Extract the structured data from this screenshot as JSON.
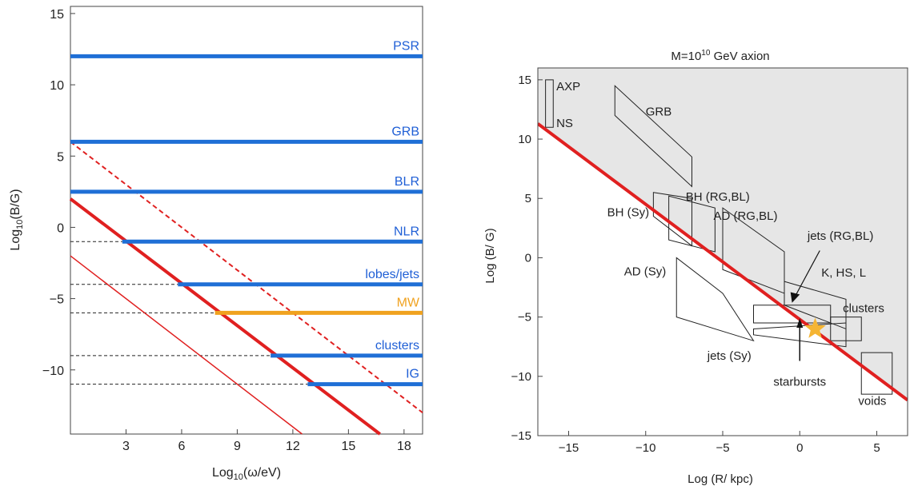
{
  "chart_data": [
    {
      "type": "line",
      "xlabel": "Log10(ω/eV)",
      "ylabel": "Log10(B/G)",
      "xlim": [
        0,
        19
      ],
      "ylim": [
        -14.5,
        15.5
      ],
      "xticks": [
        3,
        6,
        9,
        12,
        15,
        18
      ],
      "yticks": [
        15,
        10,
        5,
        0,
        -5,
        -10
      ],
      "grid": false,
      "environments": [
        {
          "name": "PSR",
          "logB": 12,
          "x_start": 0,
          "color": "#1f6fd6"
        },
        {
          "name": "GRB",
          "logB": 6,
          "x_start": 0,
          "color": "#1f6fd6"
        },
        {
          "name": "BLR",
          "logB": 2.5,
          "x_start": 0,
          "color": "#1f6fd6"
        },
        {
          "name": "NLR",
          "logB": -1,
          "x_start": 2.8,
          "color": "#1f6fd6"
        },
        {
          "name": "lobes/jets",
          "logB": -4,
          "x_start": 5.8,
          "color": "#1f6fd6"
        },
        {
          "name": "MW",
          "logB": -6,
          "x_start": 7.8,
          "color": "#f0a21f"
        },
        {
          "name": "clusters",
          "logB": -9,
          "x_start": 10.8,
          "color": "#1f6fd6"
        },
        {
          "name": "IG",
          "logB": -11,
          "x_start": 12.8,
          "color": "#1f6fd6"
        }
      ],
      "diagonal_lines": [
        {
          "style": "thick-solid",
          "points": [
            [
              0,
              2
            ],
            [
              16.7,
              -14.5
            ]
          ]
        },
        {
          "style": "thin-solid",
          "points": [
            [
              0,
              -2
            ],
            [
              12.5,
              -14.5
            ]
          ]
        },
        {
          "style": "dashed",
          "points": [
            [
              0,
              6
            ],
            [
              19,
              -13
            ]
          ]
        }
      ],
      "dashed_guides": [
        {
          "logB": -1,
          "x_to": 2.8
        },
        {
          "logB": -4,
          "x_to": 5.8
        },
        {
          "logB": -6,
          "x_to": 7.8
        },
        {
          "logB": -9,
          "x_to": 10.8
        },
        {
          "logB": -11,
          "x_to": 12.8
        }
      ]
    },
    {
      "type": "scatter",
      "title": "M=10¹⁰ GeV axion",
      "xlabel": "Log (R/ kpc)",
      "ylabel": "Log (B/ G)",
      "xlim": [
        -17,
        7
      ],
      "ylim": [
        -15,
        16
      ],
      "xticks": [
        -15,
        -10,
        -5,
        0,
        5
      ],
      "yticks": [
        15,
        10,
        5,
        0,
        -5,
        -10,
        -15
      ],
      "excluded_region": "shaded grey above the red line",
      "limit_line": {
        "points": [
          [
            -17,
            11.3
          ],
          [
            7,
            -12
          ]
        ],
        "color": "#e02020"
      },
      "regions": [
        {
          "label": "AXP",
          "polygon": [
            [
              -16.5,
              15
            ],
            [
              -16,
              15
            ],
            [
              -16,
              11
            ],
            [
              -16.5,
              11
            ]
          ]
        },
        {
          "label": "NS",
          "polygon": [
            [
              -16.5,
              15
            ],
            [
              -16,
              15
            ],
            [
              -16,
              11
            ],
            [
              -16.5,
              11
            ]
          ]
        },
        {
          "label": "GRB",
          "polygon": [
            [
              -12,
              14.5
            ],
            [
              -12,
              12
            ],
            [
              -7,
              6
            ],
            [
              -7,
              8.5
            ]
          ]
        },
        {
          "label": "BH (Sy)",
          "polygon": [
            [
              -9.5,
              5.5
            ],
            [
              -7,
              5
            ],
            [
              -7,
              1
            ],
            [
              -9.5,
              3.5
            ]
          ]
        },
        {
          "label": "BH (RG,BL)",
          "polygon": [
            [
              -8.5,
              5.2
            ],
            [
              -5.5,
              4.2
            ],
            [
              -5.5,
              0.5
            ],
            [
              -8.5,
              1.5
            ]
          ]
        },
        {
          "label": "AD (RG,BL)",
          "polygon": [
            [
              -5,
              4.2
            ],
            [
              -1,
              0.5
            ],
            [
              -1,
              -3
            ],
            [
              -5,
              -1
            ]
          ]
        },
        {
          "label": "jets (RG,BL)",
          "polygon": [
            [
              -1,
              -2
            ],
            [
              3,
              -3.5
            ],
            [
              3,
              -6
            ],
            [
              -1,
              -4
            ]
          ]
        },
        {
          "label": "K, HS, L",
          "polygon": [
            [
              -3,
              -4
            ],
            [
              2,
              -4
            ],
            [
              2,
              -5.5
            ],
            [
              -3,
              -5.5
            ]
          ]
        },
        {
          "label": "AD (Sy)",
          "polygon": [
            [
              -8,
              0
            ],
            [
              -5,
              -3
            ],
            [
              -3,
              -7
            ],
            [
              -8,
              -5
            ]
          ]
        },
        {
          "label": "jets (Sy)",
          "polygon": [
            [
              -3,
              -6
            ],
            [
              3,
              -5.5
            ],
            [
              3,
              -7.5
            ],
            [
              -3,
              -6.5
            ]
          ]
        },
        {
          "label": "clusters",
          "polygon": [
            [
              2,
              -5
            ],
            [
              4,
              -5
            ],
            [
              4,
              -7
            ],
            [
              2,
              -7
            ]
          ]
        },
        {
          "label": "voids",
          "polygon": [
            [
              4,
              -8
            ],
            [
              6,
              -8
            ],
            [
              6,
              -11.5
            ],
            [
              4,
              -11.5
            ]
          ]
        }
      ],
      "markers": [
        {
          "label": "starbursts",
          "x": 1,
          "y": -6,
          "shape": "star",
          "color": "#f5b533"
        }
      ]
    }
  ],
  "left": {
    "xlabel_prefix": "Log",
    "xlabel_sub": "10",
    "xlabel_suffix": "(ω/eV)",
    "ylabel_prefix": "Log",
    "ylabel_sub": "10",
    "ylabel_suffix": "(B/G)"
  },
  "right": {
    "title_prefix": "M=10",
    "title_sup": "10",
    "title_suffix": " GeV  axion"
  }
}
